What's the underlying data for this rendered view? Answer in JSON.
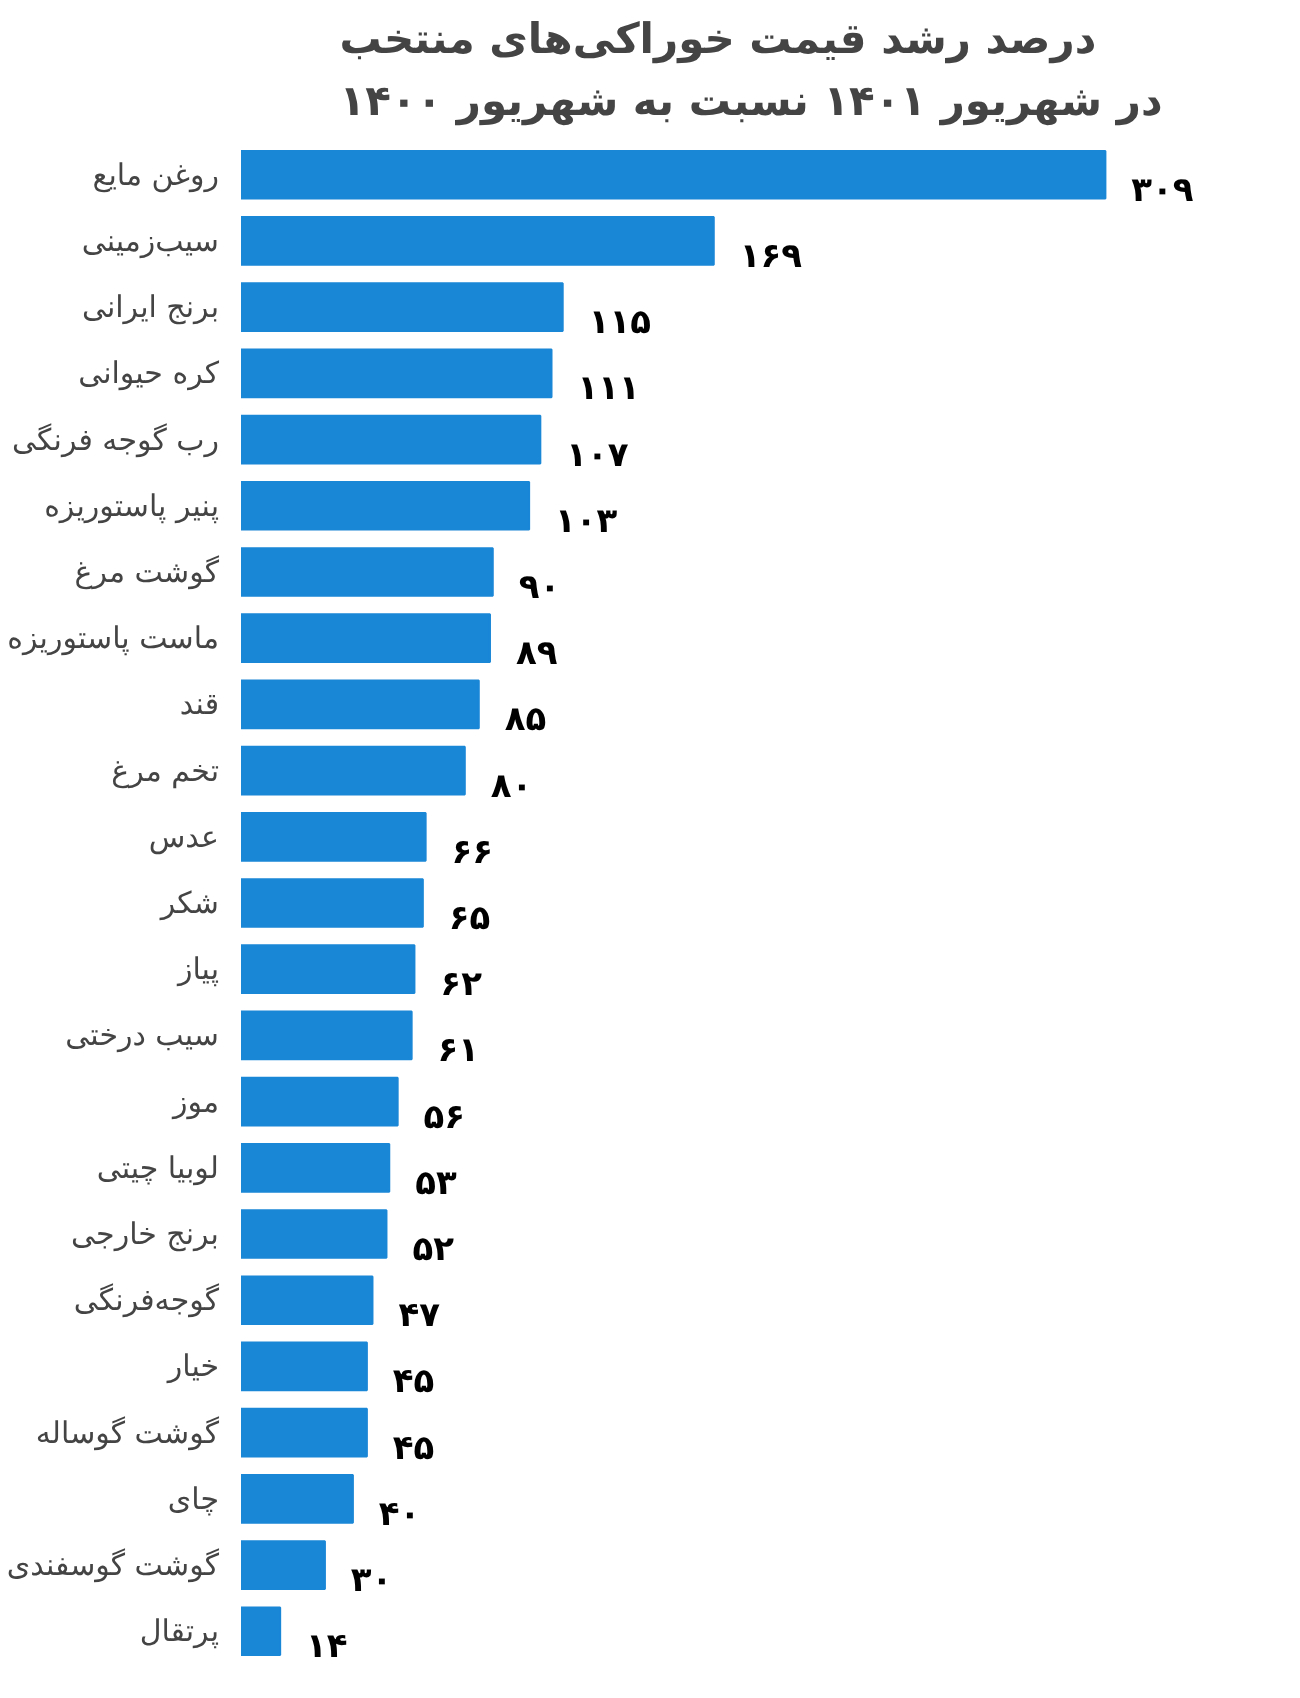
{
  "chart_data": {
    "type": "bar",
    "orientation": "horizontal",
    "title": "درصد رشد قیمت خوراکی‌های منتخب\nدر شهریور ۱۴۰۱ نسبت به شهریور ۱۴۰۰",
    "categories": [
      "روغن مایع",
      "سیب‌زمینی",
      "برنج ایرانی",
      "کره حیوانی",
      "رب گوجه فرنگی",
      "پنیر پاستوریزه",
      "گوشت مرغ",
      "ماست پاستوریزه",
      "قند",
      "تخم مرغ",
      "عدس",
      "شکر",
      "پیاز",
      "سیب درختی",
      "موز",
      "لوبیا چیتی",
      "برنج خارجی",
      "گوجه‌فرنگی",
      "خیار",
      "گوشت گوساله",
      "چای",
      "گوشت گوسفندی",
      "پرتقال"
    ],
    "values": [
      309,
      169,
      115,
      111,
      107,
      103,
      90,
      89,
      85,
      80,
      66,
      65,
      62,
      61,
      56,
      53,
      52,
      47,
      45,
      45,
      40,
      30,
      14
    ],
    "value_labels": [
      "۳۰۹",
      "۱۶۹",
      "۱۱۵",
      "۱۱۱",
      "۱۰۷",
      "۱۰۳",
      "۹۰",
      "۸۹",
      "۸۵",
      "۸۰",
      "۶۶",
      "۶۵",
      "۶۲",
      "۶۱",
      "۵۶",
      "۵۳",
      "۵۲",
      "۴۷",
      "۴۵",
      "۴۵",
      "۴۰",
      "۳۰",
      "۱۴"
    ],
    "color": "#1a86d6",
    "grid": false
  }
}
